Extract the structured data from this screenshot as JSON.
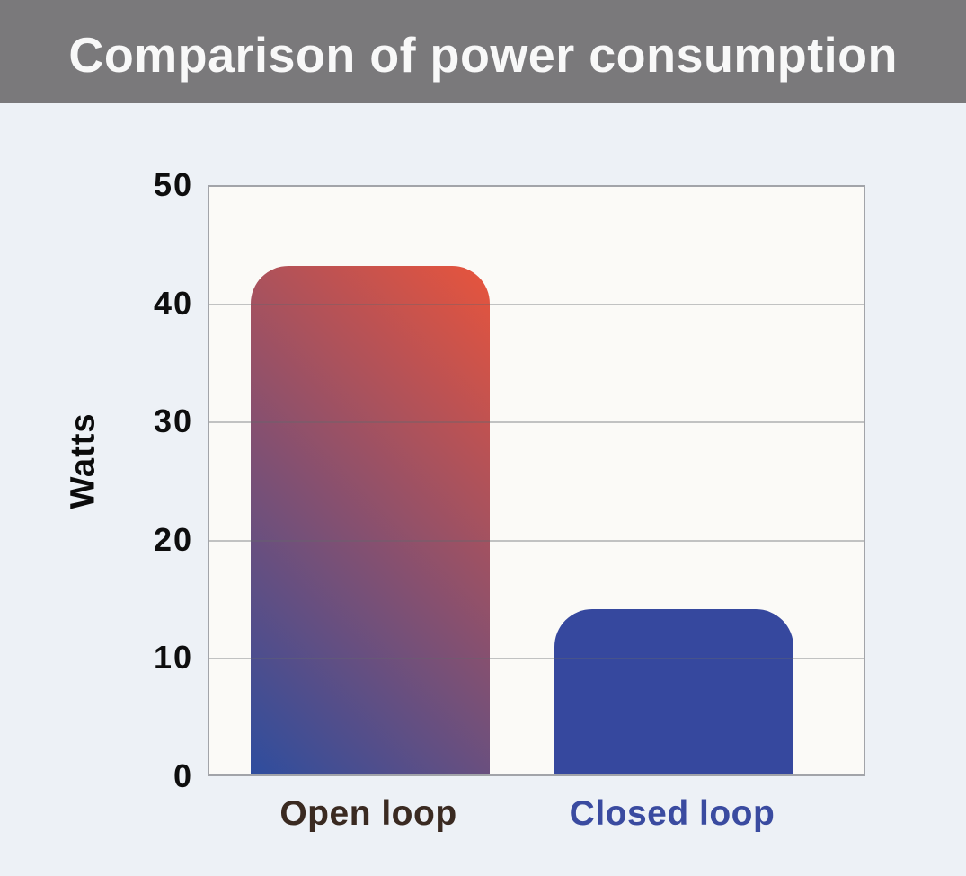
{
  "header": {
    "title": "Comparison of power consumption"
  },
  "colors": {
    "header_bg": "#7a797b",
    "header_text": "#f8f8f8",
    "page_bg": "#edf1f6",
    "plot_bg": "#fbfaf7",
    "plot_border": "#a2a4a9",
    "gridline": "#b9bbbf",
    "axis_text": "#0e0e0e",
    "open_loop_label": "#3a2a21",
    "closed_loop_label": "#3a4ba0",
    "open_loop_bar_gradient_from": "#2e4d9e",
    "open_loop_bar_gradient_to": "#e8543c",
    "closed_loop_bar": "#36489e"
  },
  "chart_data": {
    "type": "bar",
    "title": "Comparison of power consumption",
    "categories": [
      "Open loop",
      "Closed loop"
    ],
    "values": [
      43,
      14
    ],
    "xlabel": "",
    "ylabel": "Watts",
    "ylim": [
      0,
      50
    ],
    "yticks": [
      0,
      10,
      20,
      30,
      40,
      50
    ],
    "grid": true,
    "legend": false,
    "bar_styles": [
      {
        "type": "gradient",
        "angle_deg": 45,
        "from": "#2e4d9e",
        "to": "#e8543c"
      },
      {
        "type": "solid",
        "color": "#36489e"
      }
    ],
    "category_label_colors": [
      "#3a2a21",
      "#3a4ba0"
    ]
  }
}
